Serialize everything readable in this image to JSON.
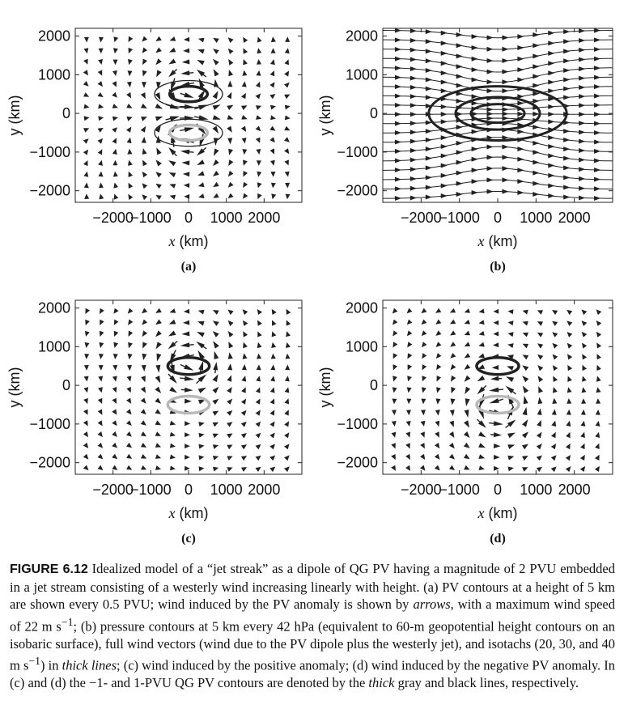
{
  "figure": {
    "label": "FIGURE 6.12",
    "caption_parts": [
      " Idealized model of a “jet streak” as a dipole of QG PV having a magnitude of 2 PVU embedded in a jet stream consisting of a westerly wind increasing linearly with height. (a) PV contours at a height of 5 km are shown every 0.5 PVU; wind induced by the PV anomaly is shown by ",
      "arrows",
      ", with a maximum wind speed of 22 m s",
      "−1",
      "; (b) pressure contours at 5 km every 42 hPa (equivalent to 60-m geopotential height contours on an isobaric surface), full wind vectors (wind due to the PV dipole plus the westerly jet), and isotachs (20, 30, and 40 m s",
      "−1",
      ") in ",
      "thick lines",
      "; (c) wind induced by the positive anomaly; (d) wind induced by the negative PV anomaly. In (c) and (d) the −1- and 1-PVU QG PV contours are denoted by the ",
      "thick",
      " gray and black lines, respectively."
    ]
  },
  "chart_data": [
    {
      "type": "vector-field",
      "panel_label": "(a)",
      "xlabel_var": "x",
      "xlabel_unit": "(km)",
      "ylabel": "y (km)",
      "x_ticks": [
        "−2000",
        "−1000",
        "0",
        "1000",
        "2000"
      ],
      "y_ticks": [
        "2000",
        "1000",
        "0",
        "−1000",
        "−2000"
      ],
      "xlim": [
        -3000,
        3000
      ],
      "ylim": [
        -2300,
        2200
      ],
      "field": "dipole",
      "contours": [
        {
          "center": [
            0,
            500
          ],
          "rx": 500,
          "ry": 200,
          "color": "#222222",
          "width": 3.5
        },
        {
          "center": [
            0,
            500
          ],
          "rx": 900,
          "ry": 350,
          "color": "#222222",
          "width": 1.3
        },
        {
          "center": [
            0,
            -500
          ],
          "rx": 500,
          "ry": 200,
          "color": "#b8b8b8",
          "width": 3.5
        },
        {
          "center": [
            0,
            -500
          ],
          "rx": 900,
          "ry": 350,
          "color": "#222222",
          "width": 1.3
        }
      ]
    },
    {
      "type": "streamlines",
      "panel_label": "(b)",
      "xlabel_var": "x",
      "xlabel_unit": "(km)",
      "ylabel": "y (km)",
      "x_ticks": [
        "−2000",
        "−1000",
        "0",
        "1000",
        "2000"
      ],
      "y_ticks": [
        "2000",
        "1000",
        "0",
        "−1000",
        "−2000"
      ],
      "xlim": [
        -3000,
        3000
      ],
      "ylim": [
        -2300,
        2200
      ],
      "field": "jet",
      "isotachs": [
        {
          "center": [
            0,
            0
          ],
          "rx": 1800,
          "ry": 700,
          "color": "#222222",
          "width": 3
        },
        {
          "center": [
            0,
            0
          ],
          "rx": 1100,
          "ry": 420,
          "color": "#222222",
          "width": 3
        },
        {
          "center": [
            0,
            0
          ],
          "rx": 700,
          "ry": 240,
          "color": "#222222",
          "width": 3
        }
      ]
    },
    {
      "type": "vector-field",
      "panel_label": "(c)",
      "xlabel_var": "x",
      "xlabel_unit": "(km)",
      "ylabel": "y (km)",
      "x_ticks": [
        "−2000",
        "−1000",
        "0",
        "1000",
        "2000"
      ],
      "y_ticks": [
        "2000",
        "1000",
        "0",
        "−1000",
        "−2000"
      ],
      "xlim": [
        -3000,
        3000
      ],
      "ylim": [
        -2300,
        2200
      ],
      "field": "positive",
      "contours": [
        {
          "center": [
            0,
            500
          ],
          "rx": 550,
          "ry": 220,
          "color": "#222222",
          "width": 3.5
        },
        {
          "center": [
            0,
            -500
          ],
          "rx": 550,
          "ry": 220,
          "color": "#b8b8b8",
          "width": 3.5
        }
      ]
    },
    {
      "type": "vector-field",
      "panel_label": "(d)",
      "xlabel_var": "x",
      "xlabel_unit": "(km)",
      "ylabel": "y (km)",
      "x_ticks": [
        "−2000",
        "−1000",
        "0",
        "1000",
        "2000"
      ],
      "y_ticks": [
        "2000",
        "1000",
        "0",
        "−1000",
        "−2000"
      ],
      "xlim": [
        -3000,
        3000
      ],
      "ylim": [
        -2300,
        2200
      ],
      "field": "negative",
      "contours": [
        {
          "center": [
            0,
            500
          ],
          "rx": 550,
          "ry": 220,
          "color": "#222222",
          "width": 3.5
        },
        {
          "center": [
            0,
            -500
          ],
          "rx": 550,
          "ry": 220,
          "color": "#b8b8b8",
          "width": 3.5
        }
      ]
    }
  ]
}
